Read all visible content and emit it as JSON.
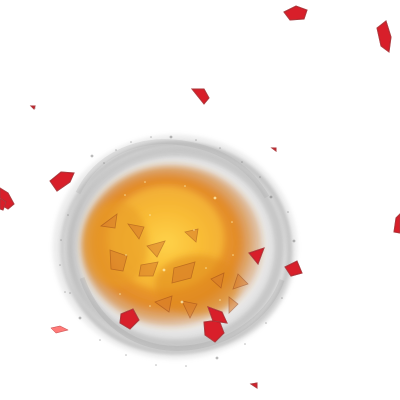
{
  "scene": {
    "type": "explosion-sprite",
    "background_color": "#ffffff",
    "effect": {
      "name": "fire-explosion",
      "core_color": "#f6b028",
      "mid_color": "#e98b1e",
      "edge_color": "#c86a19",
      "smoke_color": "#9a9a9a",
      "spark_color": "#fff1b8"
    },
    "debris": {
      "name": "red-shards",
      "color": "#d81f2a",
      "dark_color": "#7f1018",
      "highlight_color": "#ff7a78"
    },
    "inner_debris": {
      "name": "orange-fragments",
      "color": "#d77a2a",
      "dark_color": "#9a4518"
    }
  }
}
